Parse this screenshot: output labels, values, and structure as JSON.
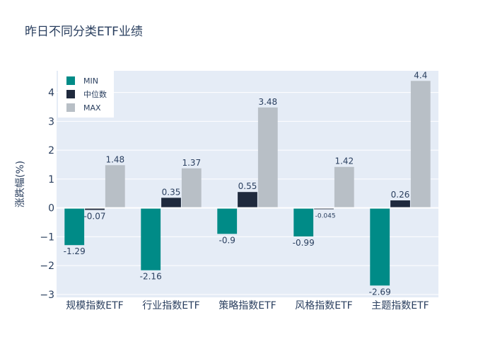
{
  "chart_data": {
    "type": "bar",
    "title": "昨日不同分类ETF业绩",
    "xlabel": "",
    "ylabel": "涨跌幅(%)",
    "categories": [
      "规模指数ETF",
      "行业指数ETF",
      "策略指数ETF",
      "风格指数ETF",
      "主题指数ETF"
    ],
    "series": [
      {
        "name": "MIN",
        "color": "#008b87",
        "values": [
          -1.29,
          -2.16,
          -0.9,
          -0.99,
          -2.69
        ],
        "labels": [
          "-1.29",
          "-2.16",
          "-0.9",
          "-0.99",
          "-2.69"
        ]
      },
      {
        "name": "中位数",
        "color": "#1f2a3d",
        "values": [
          -0.07,
          0.35,
          0.55,
          -0.045,
          0.26
        ],
        "labels": [
          "-0.07",
          "0.35",
          "0.55",
          "-0.045",
          "0.26"
        ]
      },
      {
        "name": "MAX",
        "color": "#b8bfc6",
        "values": [
          1.48,
          1.37,
          3.48,
          1.42,
          4.4
        ],
        "labels": [
          "1.48",
          "1.37",
          "3.48",
          "1.42",
          "4.4"
        ]
      }
    ],
    "ylim": [
      -3.1,
      4.75
    ],
    "yticks": [
      -3,
      -2,
      -1,
      0,
      1,
      2,
      3,
      4
    ],
    "ytick_labels": [
      "−3",
      "−2",
      "−1",
      "0",
      "1",
      "2",
      "3",
      "4"
    ],
    "legend_position": "top-left",
    "grid": true,
    "plot_bg": "#e5ecf6"
  }
}
